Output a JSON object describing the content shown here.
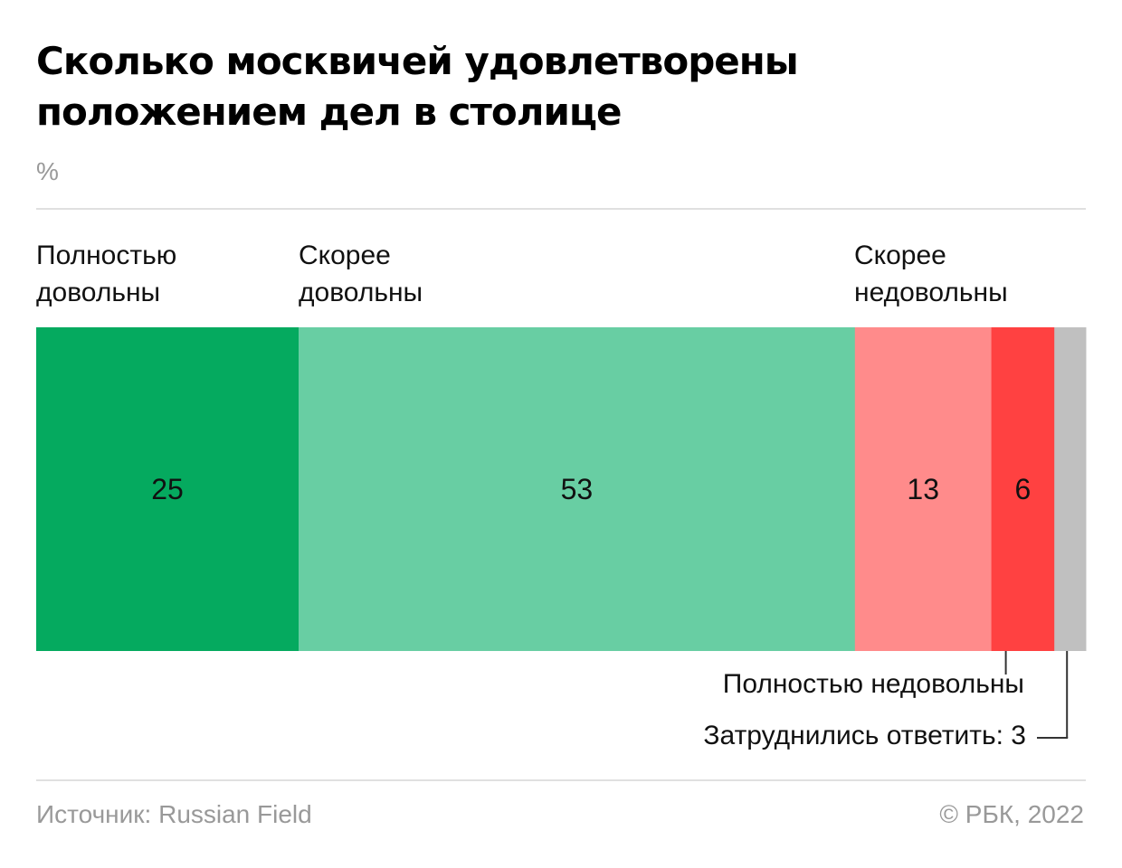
{
  "title_lines": [
    "Сколько москвичей удовлетворены",
    "положением дел в столице"
  ],
  "unit": "%",
  "chart_data": {
    "type": "bar",
    "orientation": "horizontal-stacked",
    "categories": [
      "Полностью довольны",
      "Скорее довольны",
      "Скорее недовольны",
      "Полностью недовольны",
      "Затруднились ответить"
    ],
    "values": [
      25,
      53,
      13,
      6,
      3
    ],
    "value_labels": [
      "25",
      "53",
      "13",
      "6",
      ""
    ],
    "colors": [
      "#05aa5f",
      "#68cea3",
      "#ff8b8b",
      "#ff4141",
      "#c0c0c0"
    ],
    "xlim": [
      0,
      100
    ]
  },
  "labels": {
    "top": [
      {
        "line1": "Полностью",
        "line2": "довольны"
      },
      {
        "line1": "Скорее",
        "line2": "довольны"
      },
      {
        "line1": "Скорее",
        "line2": "недовольны"
      }
    ],
    "bottom_1": "Полностью недовольны",
    "bottom_2": "Затруднились ответить: 3"
  },
  "source": "Источник: Russian Field",
  "copyright": "© РБК, 2022"
}
